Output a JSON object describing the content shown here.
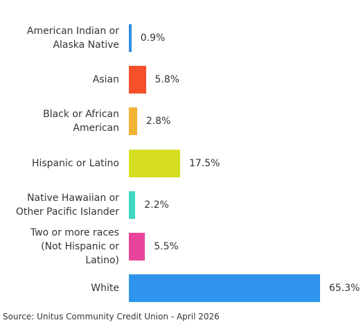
{
  "chart_data": {
    "type": "bar",
    "orientation": "horizontal",
    "categories": [
      "American Indian or\nAlaska Native",
      "Asian",
      "Black or African\nAmerican",
      "Hispanic or Latino",
      "Native Hawaiian or\nOther Pacific Islander",
      "Two or more races\n(Not Hispanic or\nLatino)",
      "White"
    ],
    "values": [
      0.9,
      5.8,
      2.8,
      17.5,
      2.2,
      5.5,
      65.3
    ],
    "value_labels": [
      "0.9%",
      "5.8%",
      "2.8%",
      "17.5%",
      "2.2%",
      "5.5%",
      "65.3%"
    ],
    "colors": [
      "#2f8fe0",
      "#f5502a",
      "#f2b233",
      "#d6de24",
      "#3dd9c1",
      "#e8449b",
      "#2f95ec"
    ],
    "source": "Source: Unitus Community Credit Union - April 2026"
  }
}
